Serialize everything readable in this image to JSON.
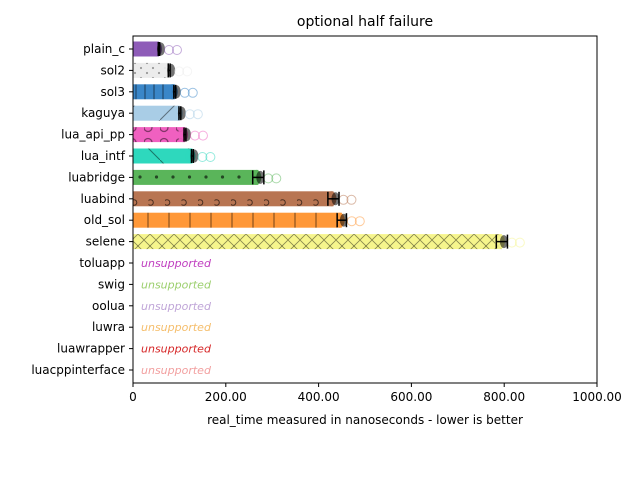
{
  "chart_data": {
    "type": "bar",
    "orientation": "horizontal",
    "title": "optional half failure",
    "xlabel": "real_time measured in nanoseconds - lower is better",
    "ylabel": "",
    "xlim": [
      0,
      1000
    ],
    "xticks": [
      "0",
      "200.00",
      "400.00",
      "600.00",
      "800.00",
      "1000.00"
    ],
    "xtick_values": [
      0,
      200,
      400,
      600,
      800,
      1000
    ],
    "grid": false,
    "legend": "none",
    "categories": [
      "plain_c",
      "sol2",
      "sol3",
      "kaguya",
      "lua_api_pp",
      "lua_intf",
      "luabridge",
      "luabind",
      "old_sol",
      "selene",
      "toluapp",
      "swig",
      "oolua",
      "luwra",
      "luawrapper",
      "luacppinterface"
    ],
    "values": [
      56,
      78,
      90,
      101,
      112,
      128,
      270,
      432,
      450,
      795,
      null,
      null,
      null,
      null,
      null,
      null
    ],
    "errors": [
      1.5,
      2,
      2,
      2,
      2,
      2,
      12,
      12,
      10,
      12,
      null,
      null,
      null,
      null,
      null,
      null
    ],
    "colors": [
      "#8e5cb8",
      "#ececec",
      "#3a86c8",
      "#a9cde6",
      "#f060c0",
      "#2ed8bd",
      "#5ab55a",
      "#b87552",
      "#ff9838",
      "#f6f58c",
      "#c03ec0",
      "#9ccf6e",
      "#c0a6d8",
      "#f5be6c",
      "#d62728",
      "#f2a0a0"
    ],
    "hatches": [
      "none",
      "dots-sparse",
      "vertical",
      "diagonal",
      "circles",
      "backdiag",
      "dots",
      "circles-small",
      "vertical-wide",
      "crosshatch",
      "none",
      "none",
      "none",
      "none",
      "none",
      "none"
    ],
    "unsupported_label": "unsupported"
  }
}
